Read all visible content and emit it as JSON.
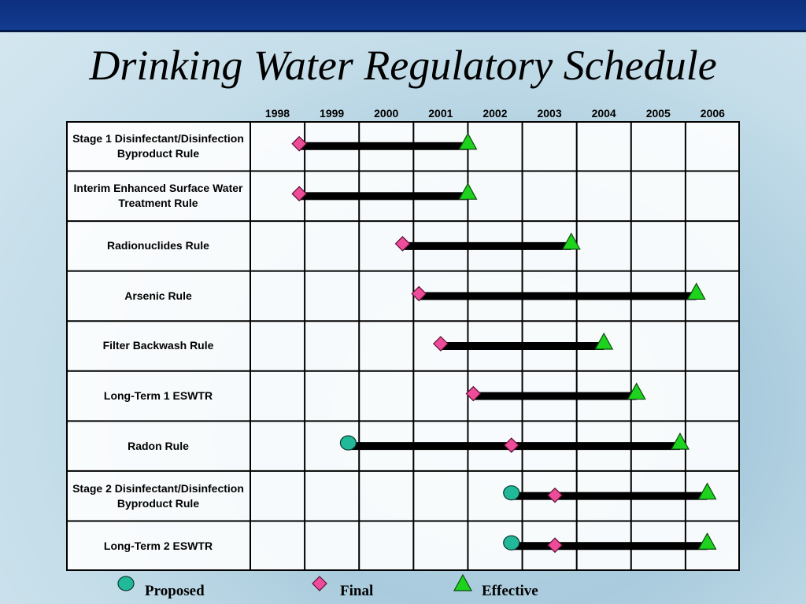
{
  "title": "Drinking Water Regulatory Schedule",
  "chart_data": {
    "type": "gantt",
    "years": [
      "1998",
      "1999",
      "2000",
      "2001",
      "2002",
      "2003",
      "2004",
      "2005",
      "2006"
    ],
    "xlim": [
      1998,
      2007
    ],
    "rules": [
      {
        "name": "Stage 1 Disinfectant/Disinfection Byproduct Rule",
        "final": 1998.9,
        "effective": 2002.0
      },
      {
        "name": "Interim Enhanced Surface Water Treatment Rule",
        "final": 1998.9,
        "effective": 2002.0
      },
      {
        "name": "Radionuclides Rule",
        "final": 2000.8,
        "effective": 2003.9
      },
      {
        "name": "Arsenic Rule",
        "final": 2001.1,
        "effective": 2006.2
      },
      {
        "name": "Filter Backwash Rule",
        "final": 2001.5,
        "effective": 2004.5
      },
      {
        "name": "Long-Term 1 ESWTR",
        "final": 2002.1,
        "effective": 2005.1
      },
      {
        "name": "Radon Rule",
        "proposed": 1999.8,
        "final": 2002.8,
        "effective": 2005.9
      },
      {
        "name": "Stage 2 Disinfectant/Disinfection Byproduct Rule",
        "proposed": 2002.8,
        "final": 2003.6,
        "effective": 2006.4
      },
      {
        "name": "Long-Term 2 ESWTR",
        "proposed": 2002.8,
        "final": 2003.6,
        "effective": 2006.4
      }
    ],
    "legend": [
      {
        "label": "Proposed",
        "marker": "circle",
        "color": "#22b89a"
      },
      {
        "label": "Final",
        "marker": "diamond",
        "color": "#ee4c9a"
      },
      {
        "label": "Effective",
        "marker": "triangle",
        "color": "#1ed31e"
      }
    ],
    "legend_position": "bottom"
  }
}
